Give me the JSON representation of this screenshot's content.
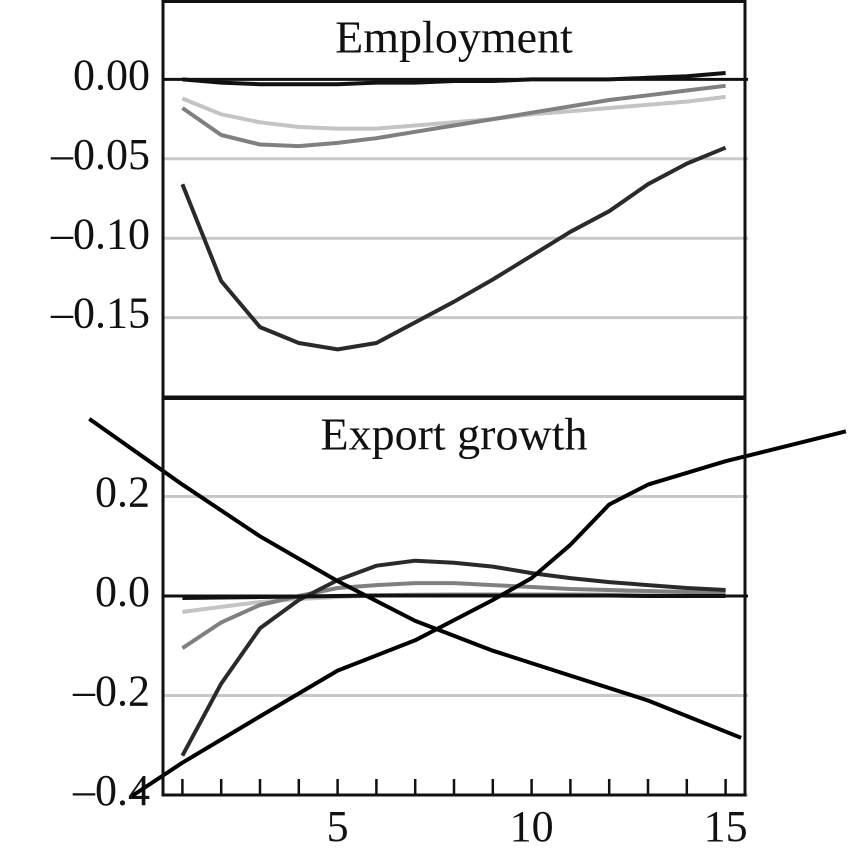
{
  "chart_data": [
    {
      "type": "line",
      "title": "Employment",
      "x": [
        1,
        2,
        3,
        4,
        5,
        6,
        7,
        8,
        9,
        10,
        11,
        12,
        13,
        14,
        15
      ],
      "xlim": [
        0.5,
        15.5
      ],
      "ylim": [
        -0.2,
        0.05
      ],
      "yticks": [
        {
          "value": 0,
          "label": "0.00"
        },
        {
          "value": -0.05,
          "label": "–0.05"
        },
        {
          "value": -0.1,
          "label": "–0.10"
        },
        {
          "value": -0.15,
          "label": "–0.15"
        }
      ],
      "grid": true,
      "series": [
        {
          "color": "#c4c4c4",
          "values": [
            -0.012,
            -0.022,
            -0.027,
            -0.03,
            -0.031,
            -0.031,
            -0.029,
            -0.027,
            -0.025,
            -0.022,
            -0.02,
            -0.018,
            -0.016,
            -0.014,
            -0.011
          ]
        },
        {
          "color": "#808080",
          "values": [
            -0.018,
            -0.035,
            -0.041,
            -0.042,
            -0.04,
            -0.037,
            -0.033,
            -0.029,
            -0.025,
            -0.021,
            -0.017,
            -0.013,
            -0.01,
            -0.007,
            -0.004
          ]
        },
        {
          "color": "#2a2a2a",
          "values": [
            -0.066,
            -0.127,
            -0.156,
            -0.166,
            -0.17,
            -0.166,
            -0.153,
            -0.14,
            -0.126,
            -0.111,
            -0.096,
            -0.083,
            -0.066,
            -0.053,
            -0.043
          ]
        },
        {
          "color": "#111111",
          "values": [
            0,
            -0.002,
            -0.003,
            -0.003,
            -0.003,
            -0.002,
            -0.002,
            -0.001,
            -0.001,
            0,
            0,
            0,
            0.001,
            0.002,
            0.004
          ]
        }
      ]
    },
    {
      "type": "line",
      "title": "Export growth",
      "x": [
        1,
        2,
        3,
        4,
        5,
        6,
        7,
        8,
        9,
        10,
        11,
        12,
        13,
        14,
        15
      ],
      "xlim": [
        0.5,
        15.5
      ],
      "ylim": [
        -0.4,
        0.4
      ],
      "yticks": [
        0.2,
        {
          "value": 0,
          "label": "0.0"
        },
        {
          "value": -0.2,
          "label": "–0.2"
        },
        {
          "value": -0.4,
          "label": "–0.4"
        }
      ],
      "xticks": [
        5,
        10,
        15
      ],
      "xminorticks": [
        1,
        2,
        3,
        4,
        5,
        6,
        7,
        8,
        9,
        10,
        11,
        12,
        13,
        14,
        15
      ],
      "grid": true,
      "series": [
        {
          "color": "#c4c4c4",
          "values": [
            -0.032,
            -0.022,
            -0.012,
            -0.006,
            -0.002,
            0.001,
            0.003,
            0.004,
            0.004,
            0.004,
            0.004,
            0.003,
            0.003,
            0.002,
            0.002
          ]
        },
        {
          "color": "#808080",
          "values": [
            -0.105,
            -0.053,
            -0.018,
            0,
            0.016,
            0.022,
            0.026,
            0.026,
            0.022,
            0.018,
            0.014,
            0.012,
            0.01,
            0.008,
            0.006
          ]
        },
        {
          "color": "#2a2a2a",
          "values": [
            -0.321,
            -0.176,
            -0.065,
            -0.008,
            0.032,
            0.061,
            0.071,
            0.067,
            0.059,
            0.046,
            0.036,
            0.028,
            0.022,
            0.016,
            0.012
          ]
        },
        {
          "color": "#111111",
          "values": [
            -0.004,
            -0.003,
            -0.002,
            -0.001,
            0,
            0.001,
            0.001,
            0.001,
            0.001,
            0.001,
            0.001,
            0.001,
            0,
            0,
            0
          ]
        },
        {
          "color": "#000000",
          "x": [
            -1.4,
            1,
            3,
            5,
            7,
            9,
            11,
            13,
            15.4
          ],
          "values": [
            0.356,
            0.224,
            0.12,
            0.03,
            -0.05,
            -0.11,
            -0.16,
            -0.21,
            -0.285
          ]
        },
        {
          "color": "#000000",
          "x": [
            -0.3,
            1,
            3,
            5,
            7,
            9,
            10,
            11,
            12,
            13,
            15,
            18.1
          ],
          "values": [
            -0.402,
            -0.335,
            -0.242,
            -0.15,
            -0.089,
            -0.008,
            0.036,
            0.103,
            0.184,
            0.224,
            0.271,
            0.331
          ]
        }
      ]
    }
  ]
}
